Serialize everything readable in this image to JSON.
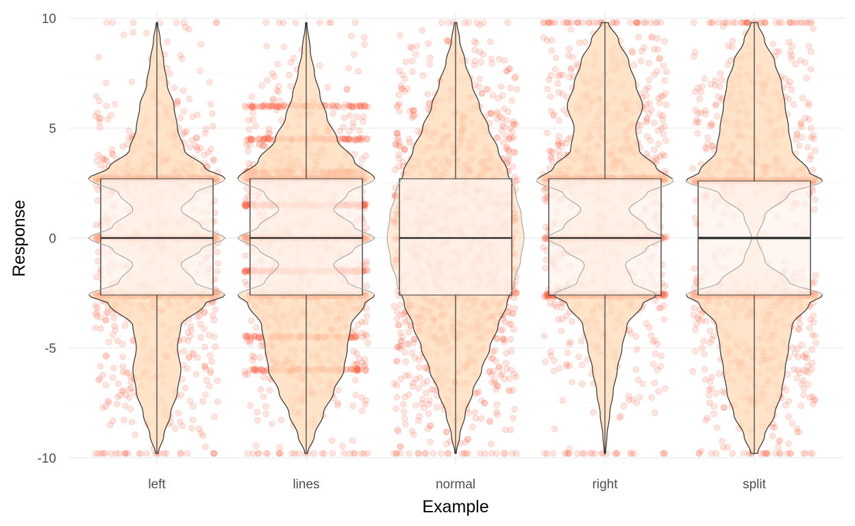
{
  "chart_data": {
    "type": "violin",
    "xlabel": "Example",
    "ylabel": "Response",
    "ylim": [
      -10.3,
      10.3
    ],
    "yticks": [
      -10,
      -5,
      0,
      5,
      10
    ],
    "ytick_labels": [
      "-10",
      "-5",
      "0",
      "5",
      "10"
    ],
    "categories": [
      "left",
      "lines",
      "normal",
      "right",
      "split"
    ],
    "grid": true,
    "legend": "none",
    "colors": {
      "points": "#ff6347",
      "violin_fill": "#ffdbb8",
      "box_fill": "#fff3ec",
      "outline": "#333333",
      "grid": "#ebebeb"
    },
    "distributions": [
      {
        "category": "left",
        "box": {
          "q1": -2.6,
          "median": 0,
          "q3": 2.7
        },
        "median_emphasized": false,
        "point_bands": [
          -2.6,
          0,
          2.7
        ],
        "violin_profile": [
          [
            -9.8,
            0.02
          ],
          [
            -9,
            0.1
          ],
          [
            -8,
            0.2
          ],
          [
            -7,
            0.3
          ],
          [
            -6,
            0.35
          ],
          [
            -5,
            0.3
          ],
          [
            -4,
            0.35
          ],
          [
            -3,
            0.7
          ],
          [
            -2.6,
            1.0
          ],
          [
            -2,
            0.55
          ],
          [
            -1.2,
            0.35
          ],
          [
            -0.5,
            0.65
          ],
          [
            0,
            1.0
          ],
          [
            0.5,
            0.65
          ],
          [
            1.3,
            0.35
          ],
          [
            2,
            0.55
          ],
          [
            2.7,
            1.0
          ],
          [
            3.2,
            0.7
          ],
          [
            4,
            0.4
          ],
          [
            5,
            0.3
          ],
          [
            6,
            0.25
          ],
          [
            7,
            0.15
          ],
          [
            8,
            0.1
          ],
          [
            9,
            0.05
          ],
          [
            9.8,
            0.01
          ]
        ]
      },
      {
        "category": "lines",
        "box": {
          "q1": -2.6,
          "median": 0,
          "q3": 2.7
        },
        "median_emphasized": false,
        "point_bands": [
          -6,
          -4.5,
          -2.6,
          -1.5,
          0,
          1.5,
          2.7,
          3,
          4.5,
          6
        ],
        "violin_profile": [
          [
            -9.8,
            0.02
          ],
          [
            -9,
            0.12
          ],
          [
            -8,
            0.25
          ],
          [
            -7,
            0.4
          ],
          [
            -6,
            0.55
          ],
          [
            -5,
            0.6
          ],
          [
            -4,
            0.65
          ],
          [
            -3,
            0.85
          ],
          [
            -2.6,
            1.0
          ],
          [
            -2,
            0.6
          ],
          [
            -1.2,
            0.4
          ],
          [
            -0.5,
            0.7
          ],
          [
            0,
            1.0
          ],
          [
            0.5,
            0.7
          ],
          [
            1.3,
            0.4
          ],
          [
            2,
            0.6
          ],
          [
            2.7,
            1.0
          ],
          [
            3.5,
            0.7
          ],
          [
            4.5,
            0.45
          ],
          [
            5.5,
            0.3
          ],
          [
            6.5,
            0.2
          ],
          [
            7.5,
            0.12
          ],
          [
            8.5,
            0.06
          ],
          [
            9.8,
            0.01
          ]
        ]
      },
      {
        "category": "normal",
        "box": {
          "q1": -2.6,
          "median": 0,
          "q3": 2.7
        },
        "median_emphasized": false,
        "point_bands": [],
        "violin_profile": [
          [
            -9.8,
            0.01
          ],
          [
            -9,
            0.06
          ],
          [
            -8,
            0.14
          ],
          [
            -7,
            0.25
          ],
          [
            -6,
            0.38
          ],
          [
            -5,
            0.5
          ],
          [
            -4,
            0.62
          ],
          [
            -3,
            0.75
          ],
          [
            -2,
            0.86
          ],
          [
            -1,
            0.95
          ],
          [
            0,
            1.0
          ],
          [
            1,
            0.96
          ],
          [
            2,
            0.88
          ],
          [
            3,
            0.76
          ],
          [
            4,
            0.62
          ],
          [
            5,
            0.48
          ],
          [
            6,
            0.35
          ],
          [
            7,
            0.24
          ],
          [
            8,
            0.14
          ],
          [
            9,
            0.06
          ],
          [
            9.8,
            0.02
          ]
        ]
      },
      {
        "category": "right",
        "box": {
          "q1": -2.6,
          "median": 0,
          "q3": 2.7
        },
        "median_emphasized": false,
        "point_bands": [
          -2.6,
          0,
          2.7
        ],
        "violin_profile": [
          [
            -9.8,
            0.01
          ],
          [
            -9,
            0.03
          ],
          [
            -8,
            0.07
          ],
          [
            -7,
            0.12
          ],
          [
            -6,
            0.18
          ],
          [
            -5,
            0.25
          ],
          [
            -4,
            0.32
          ],
          [
            -3,
            0.55
          ],
          [
            -2.6,
            0.75
          ],
          [
            -2,
            0.4
          ],
          [
            -1.2,
            0.3
          ],
          [
            -0.5,
            0.6
          ],
          [
            0,
            0.85
          ],
          [
            0.5,
            0.6
          ],
          [
            1.3,
            0.35
          ],
          [
            2,
            0.6
          ],
          [
            2.6,
            1.0
          ],
          [
            3.2,
            0.75
          ],
          [
            4,
            0.5
          ],
          [
            5,
            0.45
          ],
          [
            6,
            0.55
          ],
          [
            7,
            0.45
          ],
          [
            8,
            0.35
          ],
          [
            9,
            0.2
          ],
          [
            9.8,
            0.05
          ]
        ]
      },
      {
        "category": "split",
        "box": {
          "q1": -2.6,
          "median": 0,
          "q3": 2.6
        },
        "median_emphasized": true,
        "point_bands": [
          -2.6,
          2.6
        ],
        "violin_profile": [
          [
            -9.8,
            0.05
          ],
          [
            -9,
            0.15
          ],
          [
            -8,
            0.3
          ],
          [
            -7,
            0.4
          ],
          [
            -6,
            0.45
          ],
          [
            -5,
            0.5
          ],
          [
            -4,
            0.55
          ],
          [
            -3,
            0.8
          ],
          [
            -2.6,
            1.0
          ],
          [
            -2,
            0.5
          ],
          [
            -1,
            0.15
          ],
          [
            0,
            0.04
          ],
          [
            1,
            0.15
          ],
          [
            2,
            0.5
          ],
          [
            2.6,
            1.0
          ],
          [
            3,
            0.8
          ],
          [
            4,
            0.55
          ],
          [
            5,
            0.5
          ],
          [
            6,
            0.45
          ],
          [
            7,
            0.4
          ],
          [
            8,
            0.3
          ],
          [
            9,
            0.15
          ],
          [
            9.8,
            0.05
          ]
        ]
      }
    ]
  }
}
